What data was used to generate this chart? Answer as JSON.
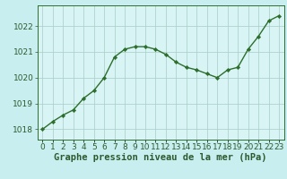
{
  "x": [
    0,
    1,
    2,
    3,
    4,
    5,
    6,
    7,
    8,
    9,
    10,
    11,
    12,
    13,
    14,
    15,
    16,
    17,
    18,
    19,
    20,
    21,
    22,
    23
  ],
  "y": [
    1018.0,
    1018.3,
    1018.55,
    1018.75,
    1019.2,
    1019.5,
    1020.0,
    1020.8,
    1021.1,
    1021.2,
    1021.2,
    1021.1,
    1020.9,
    1020.6,
    1020.4,
    1020.3,
    1020.15,
    1020.0,
    1020.3,
    1020.4,
    1021.1,
    1021.6,
    1022.2,
    1022.4
  ],
  "line_color": "#2d6e2d",
  "marker": "D",
  "marker_size": 2.2,
  "background_color": "#c8eef0",
  "plot_bg_color": "#d8f4f4",
  "grid_color": "#a8ccc8",
  "xlabel": "Graphe pression niveau de la mer (hPa)",
  "xlabel_fontsize": 7.5,
  "ylabel_ticks": [
    1018,
    1019,
    1020,
    1021,
    1022
  ],
  "xlim": [
    -0.5,
    23.5
  ],
  "ylim": [
    1017.6,
    1022.8
  ],
  "xtick_labels": [
    "0",
    "1",
    "2",
    "3",
    "4",
    "5",
    "6",
    "7",
    "8",
    "9",
    "10",
    "11",
    "12",
    "13",
    "14",
    "15",
    "16",
    "17",
    "18",
    "19",
    "20",
    "21",
    "22",
    "23"
  ],
  "tick_fontsize": 6.5,
  "tick_color": "#2d5a2d",
  "spine_color": "#2d6e2d",
  "line_width": 1.0
}
